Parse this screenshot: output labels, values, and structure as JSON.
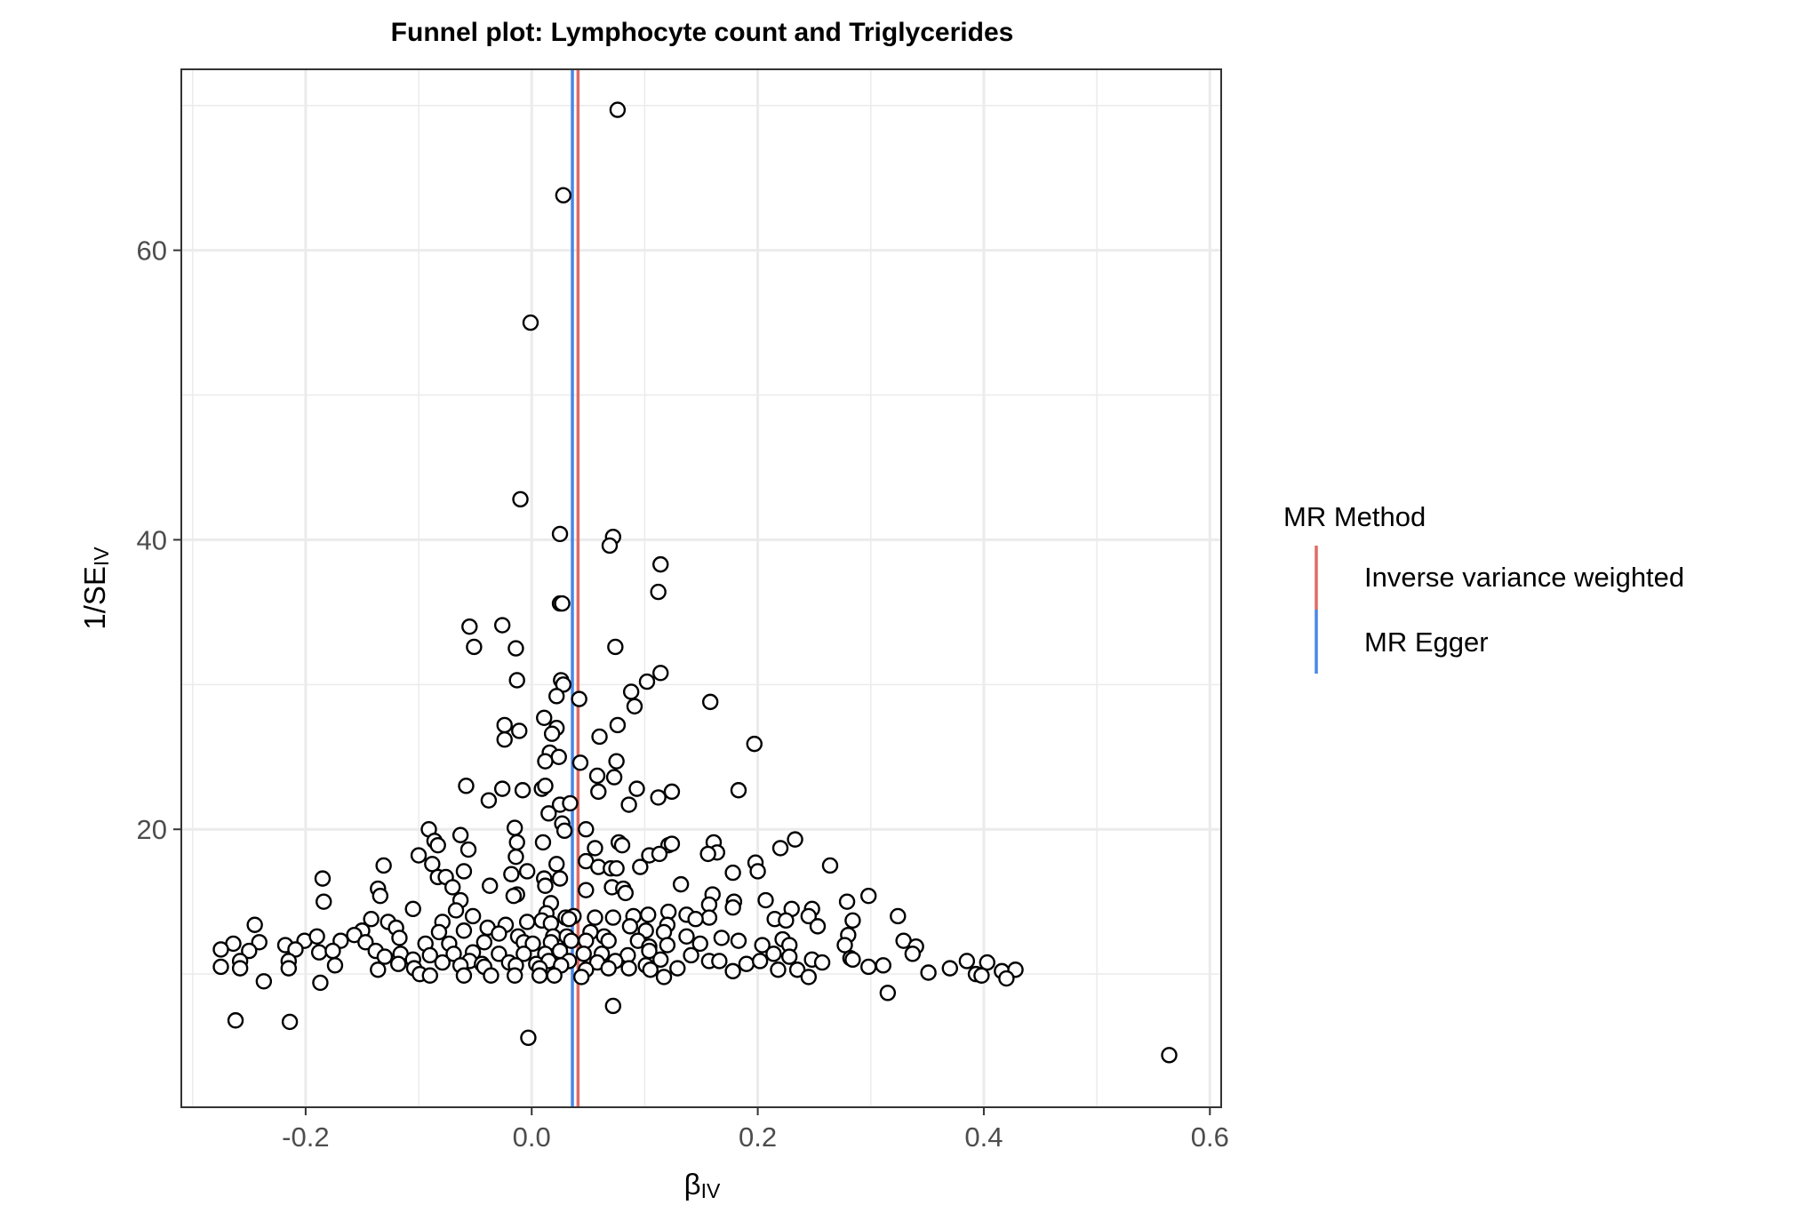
{
  "chart_data": {
    "type": "scatter",
    "title": "Funnel plot: Lymphocyte count and Triglycerides",
    "xlabel": {
      "main": "β",
      "sub": "IV"
    },
    "ylabel": {
      "main": "1/SE",
      "sub": "IV"
    },
    "xlim": [
      -0.31,
      0.61
    ],
    "ylim": [
      0.8,
      72.5
    ],
    "x_ticks": [
      -0.2,
      0.0,
      0.2,
      0.4,
      0.6
    ],
    "x_tick_labels": [
      "-0.2",
      "0.0",
      "0.2",
      "0.4",
      "0.6"
    ],
    "y_ticks": [
      20,
      40,
      60
    ],
    "y_tick_labels": [
      "20",
      "40",
      "60"
    ],
    "grid": true,
    "legend_position": "right",
    "legend": {
      "title": "MR Method",
      "entries": [
        {
          "label": "Inverse variance weighted",
          "color": "#e06c63"
        },
        {
          "label": "MR Egger",
          "color": "#4a86e8"
        }
      ]
    },
    "vlines": [
      {
        "method": "Inverse variance weighted",
        "x": 0.041,
        "color": "#e06c63"
      },
      {
        "method": "MR Egger",
        "x": 0.036,
        "color": "#4a86e8"
      }
    ],
    "colors": {
      "point_fill": "#ffffff",
      "point_stroke": "#000000",
      "grid": "#ebebeb",
      "panel_border": "#333333"
    },
    "points": [
      [
        0.076,
        69.7
      ],
      [
        0.028,
        63.8
      ],
      [
        -0.001,
        55.0
      ],
      [
        -0.01,
        42.8
      ],
      [
        0.025,
        40.4
      ],
      [
        0.072,
        40.2
      ],
      [
        0.069,
        39.6
      ],
      [
        0.114,
        38.3
      ],
      [
        0.112,
        36.4
      ],
      [
        0.025,
        35.6
      ],
      [
        0.027,
        35.6
      ],
      [
        -0.055,
        34.0
      ],
      [
        -0.026,
        34.1
      ],
      [
        -0.051,
        32.6
      ],
      [
        -0.014,
        32.5
      ],
      [
        0.074,
        32.6
      ],
      [
        -0.013,
        30.3
      ],
      [
        0.114,
        30.8
      ],
      [
        0.102,
        30.2
      ],
      [
        0.026,
        30.3
      ],
      [
        0.028,
        30.0
      ],
      [
        0.088,
        29.5
      ],
      [
        0.022,
        29.2
      ],
      [
        0.042,
        29.0
      ],
      [
        0.091,
        28.5
      ],
      [
        0.158,
        28.8
      ],
      [
        0.011,
        27.7
      ],
      [
        -0.024,
        27.2
      ],
      [
        -0.011,
        26.8
      ],
      [
        0.022,
        27.0
      ],
      [
        0.018,
        26.6
      ],
      [
        0.076,
        27.2
      ],
      [
        0.06,
        26.4
      ],
      [
        -0.024,
        26.2
      ],
      [
        0.197,
        25.9
      ],
      [
        0.016,
        25.3
      ],
      [
        0.024,
        25.0
      ],
      [
        0.012,
        24.7
      ],
      [
        0.043,
        24.6
      ],
      [
        0.075,
        24.7
      ],
      [
        0.058,
        23.7
      ],
      [
        0.073,
        23.6
      ],
      [
        -0.058,
        23.0
      ],
      [
        0.009,
        22.8
      ],
      [
        0.012,
        23.0
      ],
      [
        -0.026,
        22.8
      ],
      [
        -0.008,
        22.7
      ],
      [
        0.059,
        22.6
      ],
      [
        0.093,
        22.8
      ],
      [
        0.124,
        22.6
      ],
      [
        0.112,
        22.2
      ],
      [
        0.183,
        22.7
      ],
      [
        -0.038,
        22.0
      ],
      [
        0.025,
        21.7
      ],
      [
        0.034,
        21.8
      ],
      [
        0.086,
        21.7
      ],
      [
        0.015,
        21.1
      ],
      [
        0.027,
        20.4
      ],
      [
        0.029,
        19.9
      ],
      [
        0.048,
        20.0
      ],
      [
        -0.091,
        20.0
      ],
      [
        -0.015,
        20.1
      ],
      [
        -0.063,
        19.6
      ],
      [
        -0.086,
        19.2
      ],
      [
        -0.083,
        18.9
      ],
      [
        -0.056,
        18.6
      ],
      [
        0.01,
        19.1
      ],
      [
        -0.013,
        19.1
      ],
      [
        0.056,
        18.7
      ],
      [
        0.077,
        19.1
      ],
      [
        0.08,
        18.9
      ],
      [
        0.121,
        18.9
      ],
      [
        0.124,
        19.0
      ],
      [
        0.161,
        19.1
      ],
      [
        0.164,
        18.4
      ],
      [
        0.233,
        19.3
      ],
      [
        0.22,
        18.7
      ],
      [
        -0.1,
        18.2
      ],
      [
        -0.014,
        18.1
      ],
      [
        -0.088,
        17.6
      ],
      [
        0.048,
        17.8
      ],
      [
        0.022,
        17.6
      ],
      [
        0.104,
        18.2
      ],
      [
        0.113,
        18.3
      ],
      [
        0.059,
        17.4
      ],
      [
        0.07,
        17.3
      ],
      [
        0.075,
        17.3
      ],
      [
        0.096,
        17.4
      ],
      [
        0.156,
        18.3
      ],
      [
        0.198,
        17.7
      ],
      [
        0.178,
        17.0
      ],
      [
        0.264,
        17.5
      ],
      [
        -0.131,
        17.5
      ],
      [
        -0.083,
        16.7
      ],
      [
        -0.06,
        17.1
      ],
      [
        -0.076,
        16.7
      ],
      [
        -0.037,
        16.1
      ],
      [
        -0.018,
        16.9
      ],
      [
        -0.004,
        17.1
      ],
      [
        0.011,
        16.6
      ],
      [
        0.025,
        16.6
      ],
      [
        -0.185,
        16.6
      ],
      [
        -0.07,
        16.0
      ],
      [
        0.048,
        15.8
      ],
      [
        0.071,
        16.0
      ],
      [
        0.081,
        15.9
      ],
      [
        0.083,
        15.6
      ],
      [
        0.2,
        17.1
      ],
      [
        0.132,
        16.2
      ],
      [
        -0.136,
        15.9
      ],
      [
        -0.134,
        15.4
      ],
      [
        -0.063,
        15.1
      ],
      [
        -0.013,
        15.5
      ],
      [
        0.012,
        16.1
      ],
      [
        -0.016,
        15.4
      ],
      [
        0.017,
        14.9
      ],
      [
        0.16,
        15.5
      ],
      [
        0.157,
        14.8
      ],
      [
        0.179,
        15.0
      ],
      [
        0.207,
        15.1
      ],
      [
        0.279,
        15.0
      ],
      [
        0.298,
        15.4
      ],
      [
        -0.184,
        15.0
      ],
      [
        -0.105,
        14.5
      ],
      [
        -0.067,
        14.4
      ],
      [
        -0.052,
        14.0
      ],
      [
        0.013,
        14.2
      ],
      [
        0.03,
        13.9
      ],
      [
        0.037,
        14.0
      ],
      [
        0.09,
        14.0
      ],
      [
        0.103,
        14.1
      ],
      [
        0.121,
        14.3
      ],
      [
        0.137,
        14.1
      ],
      [
        0.157,
        13.9
      ],
      [
        0.178,
        14.6
      ],
      [
        0.215,
        13.8
      ],
      [
        0.23,
        14.5
      ],
      [
        0.248,
        14.5
      ],
      [
        0.245,
        14.0
      ],
      [
        0.284,
        13.7
      ],
      [
        0.324,
        14.0
      ],
      [
        -0.142,
        13.8
      ],
      [
        -0.127,
        13.6
      ],
      [
        -0.079,
        13.6
      ],
      [
        -0.039,
        13.2
      ],
      [
        -0.023,
        13.4
      ],
      [
        -0.004,
        13.6
      ],
      [
        0.009,
        13.7
      ],
      [
        0.017,
        13.5
      ],
      [
        0.033,
        13.8
      ],
      [
        0.056,
        13.9
      ],
      [
        0.072,
        13.9
      ],
      [
        0.087,
        13.3
      ],
      [
        0.12,
        13.4
      ],
      [
        0.145,
        13.8
      ],
      [
        0.225,
        13.7
      ],
      [
        0.253,
        13.3
      ],
      [
        -0.245,
        13.4
      ],
      [
        -0.15,
        13.0
      ],
      [
        -0.12,
        13.2
      ],
      [
        -0.082,
        12.9
      ],
      [
        -0.06,
        13.0
      ],
      [
        -0.029,
        12.8
      ],
      [
        -0.012,
        12.6
      ],
      [
        0.019,
        12.6
      ],
      [
        0.031,
        12.6
      ],
      [
        0.052,
        12.9
      ],
      [
        0.064,
        12.6
      ],
      [
        0.101,
        13.0
      ],
      [
        0.117,
        12.9
      ],
      [
        0.137,
        12.6
      ],
      [
        0.168,
        12.5
      ],
      [
        0.222,
        12.4
      ],
      [
        0.28,
        12.7
      ],
      [
        0.329,
        12.3
      ],
      [
        -0.264,
        12.1
      ],
      [
        -0.241,
        12.2
      ],
      [
        -0.218,
        12.0
      ],
      [
        -0.201,
        12.3
      ],
      [
        -0.19,
        12.6
      ],
      [
        -0.169,
        12.3
      ],
      [
        -0.157,
        12.7
      ],
      [
        -0.147,
        12.2
      ],
      [
        -0.117,
        12.5
      ],
      [
        -0.094,
        12.1
      ],
      [
        -0.073,
        12.1
      ],
      [
        -0.042,
        12.2
      ],
      [
        -0.007,
        12.2
      ],
      [
        0.001,
        12.1
      ],
      [
        0.017,
        12.2
      ],
      [
        0.035,
        12.3
      ],
      [
        0.048,
        12.3
      ],
      [
        0.068,
        12.3
      ],
      [
        0.094,
        12.3
      ],
      [
        0.104,
        11.9
      ],
      [
        0.12,
        12.0
      ],
      [
        0.149,
        12.1
      ],
      [
        0.183,
        12.3
      ],
      [
        0.204,
        12.0
      ],
      [
        0.228,
        12.0
      ],
      [
        0.277,
        12.0
      ],
      [
        0.34,
        11.9
      ],
      [
        -0.275,
        11.7
      ],
      [
        -0.25,
        11.6
      ],
      [
        -0.209,
        11.7
      ],
      [
        -0.188,
        11.5
      ],
      [
        -0.176,
        11.6
      ],
      [
        -0.138,
        11.6
      ],
      [
        -0.116,
        11.4
      ],
      [
        -0.09,
        11.3
      ],
      [
        -0.069,
        11.4
      ],
      [
        -0.052,
        11.5
      ],
      [
        -0.029,
        11.4
      ],
      [
        -0.007,
        11.4
      ],
      [
        0.012,
        11.4
      ],
      [
        0.025,
        11.6
      ],
      [
        0.046,
        11.4
      ],
      [
        0.062,
        11.4
      ],
      [
        0.085,
        11.3
      ],
      [
        0.104,
        11.6
      ],
      [
        0.141,
        11.3
      ],
      [
        0.214,
        11.4
      ],
      [
        0.228,
        11.2
      ],
      [
        0.282,
        11.1
      ],
      [
        0.337,
        11.4
      ],
      [
        -0.258,
        10.9
      ],
      [
        -0.215,
        10.9
      ],
      [
        -0.13,
        11.2
      ],
      [
        -0.105,
        11.0
      ],
      [
        -0.079,
        10.8
      ],
      [
        -0.055,
        10.9
      ],
      [
        -0.044,
        10.7
      ],
      [
        -0.02,
        10.8
      ],
      [
        0.004,
        10.7
      ],
      [
        0.015,
        10.9
      ],
      [
        0.033,
        10.9
      ],
      [
        0.058,
        10.8
      ],
      [
        0.074,
        10.9
      ],
      [
        0.101,
        10.6
      ],
      [
        0.114,
        11.0
      ],
      [
        0.157,
        10.9
      ],
      [
        0.166,
        10.9
      ],
      [
        0.19,
        10.7
      ],
      [
        0.202,
        10.9
      ],
      [
        0.248,
        11.0
      ],
      [
        0.257,
        10.8
      ],
      [
        0.284,
        11.0
      ],
      [
        0.298,
        10.5
      ],
      [
        0.311,
        10.6
      ],
      [
        0.37,
        10.4
      ],
      [
        0.385,
        10.9
      ],
      [
        0.403,
        10.8
      ],
      [
        -0.275,
        10.5
      ],
      [
        -0.258,
        10.4
      ],
      [
        -0.215,
        10.4
      ],
      [
        -0.174,
        10.6
      ],
      [
        -0.136,
        10.3
      ],
      [
        -0.118,
        10.7
      ],
      [
        -0.104,
        10.4
      ],
      [
        -0.063,
        10.6
      ],
      [
        -0.042,
        10.5
      ],
      [
        -0.014,
        10.6
      ],
      [
        0.007,
        10.4
      ],
      [
        0.026,
        10.6
      ],
      [
        0.048,
        10.3
      ],
      [
        0.068,
        10.4
      ],
      [
        0.086,
        10.4
      ],
      [
        0.105,
        10.3
      ],
      [
        0.129,
        10.4
      ],
      [
        0.178,
        10.2
      ],
      [
        0.218,
        10.3
      ],
      [
        0.235,
        10.3
      ],
      [
        0.351,
        10.1
      ],
      [
        0.393,
        10.0
      ],
      [
        0.416,
        10.2
      ],
      [
        0.428,
        10.3
      ],
      [
        -0.099,
        10.0
      ],
      [
        -0.09,
        9.9
      ],
      [
        -0.06,
        9.9
      ],
      [
        -0.036,
        9.9
      ],
      [
        -0.015,
        9.9
      ],
      [
        0.007,
        9.9
      ],
      [
        0.02,
        9.9
      ],
      [
        0.044,
        9.8
      ],
      [
        0.117,
        9.8
      ],
      [
        0.245,
        9.8
      ],
      [
        0.398,
        9.9
      ],
      [
        0.42,
        9.7
      ],
      [
        -0.237,
        9.5
      ],
      [
        -0.187,
        9.4
      ],
      [
        0.315,
        8.7
      ],
      [
        -0.262,
        6.8
      ],
      [
        -0.214,
        6.7
      ],
      [
        0.072,
        7.8
      ],
      [
        -0.003,
        5.6
      ],
      [
        0.564,
        4.4
      ]
    ]
  }
}
